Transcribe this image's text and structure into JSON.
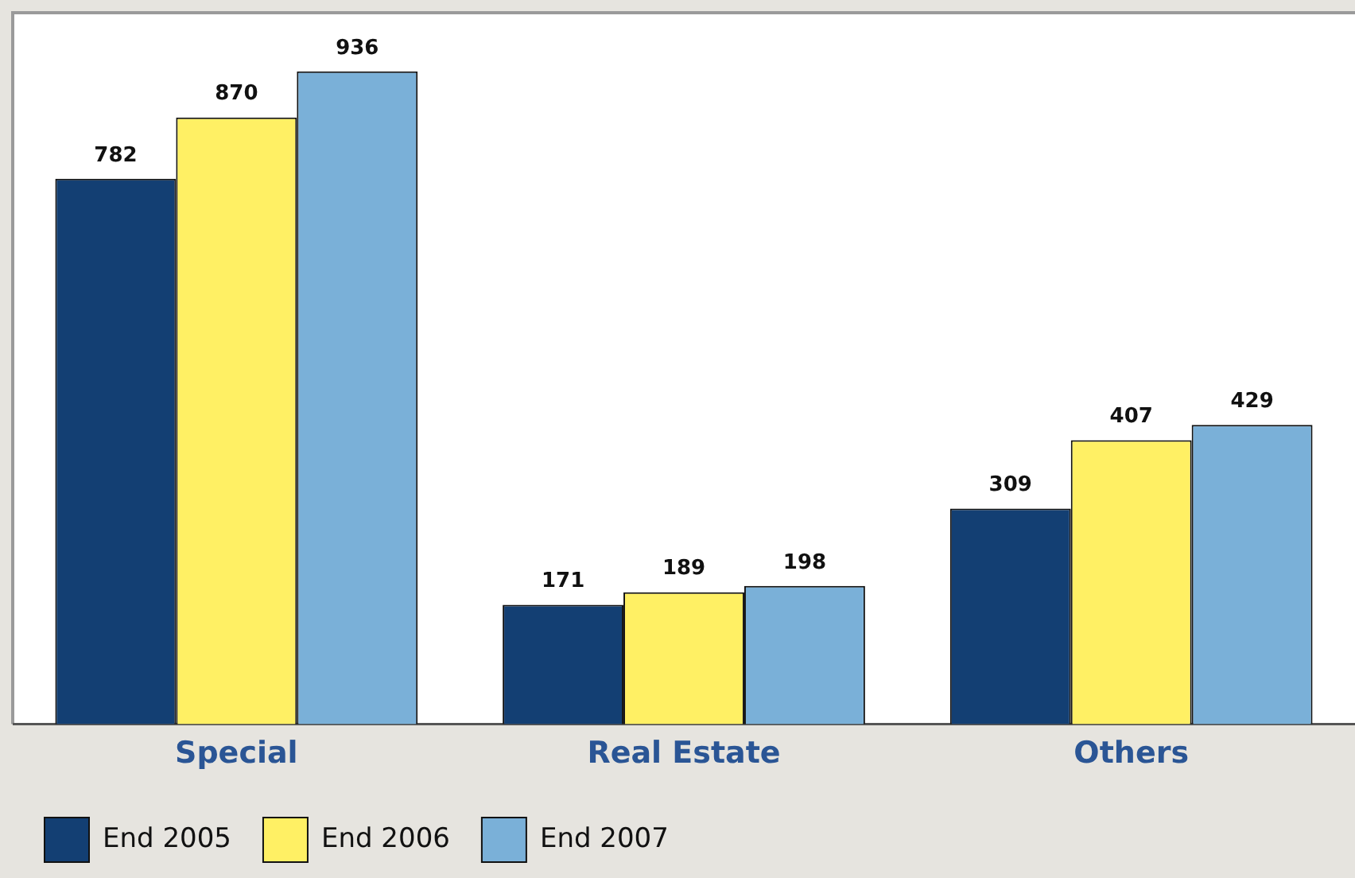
{
  "chart_data": {
    "type": "bar",
    "categories": [
      "Special",
      "Real Estate",
      "Others"
    ],
    "series": [
      {
        "name": "End 2005",
        "color": "#133f73",
        "values": [
          782,
          171,
          309
        ]
      },
      {
        "name": "End 2006",
        "color": "#fff064",
        "values": [
          870,
          189,
          407
        ]
      },
      {
        "name": "End 2007",
        "color": "#7ab0d8",
        "values": [
          936,
          198,
          429
        ]
      }
    ],
    "data_labels": true,
    "legend": "bottom left",
    "grid": false
  }
}
